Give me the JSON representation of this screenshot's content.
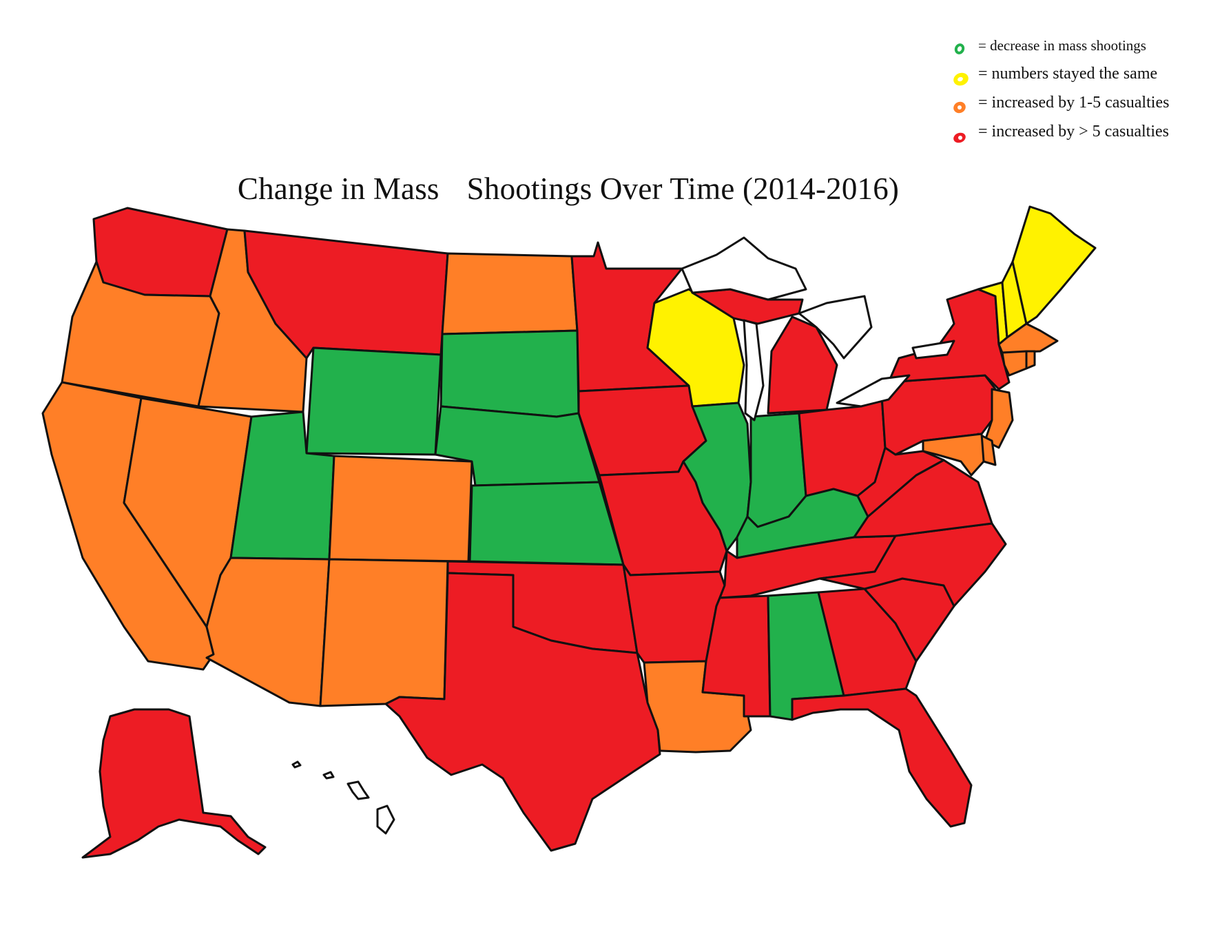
{
  "title_parts": [
    "Change in Mass",
    "Shootings Over Time (2014-2016)"
  ],
  "legend": [
    {
      "key": "decrease",
      "label": "= decrease in mass shootings",
      "color": "#22b14c"
    },
    {
      "key": "same",
      "label": "= numbers stayed the same",
      "color": "#fff200"
    },
    {
      "key": "small_increase",
      "label": "= increased by 1-5 casualties",
      "color": "#ff7f27"
    },
    {
      "key": "large_increase",
      "label": "= increased by > 5 casualties",
      "color": "#ed1c24"
    }
  ],
  "states": {
    "WA": "large_increase",
    "OR": "small_increase",
    "CA": "small_increase",
    "ID": "small_increase",
    "NV": "small_increase",
    "MT": "large_increase",
    "WY": "decrease",
    "UT": "decrease",
    "AZ": "small_increase",
    "CO": "small_increase",
    "NM": "small_increase",
    "ND": "small_increase",
    "SD": "decrease",
    "NE": "decrease",
    "KS": "decrease",
    "OK": "large_increase",
    "TX": "large_increase",
    "MN": "large_increase",
    "IA": "large_increase",
    "MO": "large_increase",
    "AR": "large_increase",
    "LA": "small_increase",
    "WI": "same",
    "IL": "decrease",
    "MI": "large_increase",
    "IN": "decrease",
    "OH": "large_increase",
    "KY": "decrease",
    "TN": "large_increase",
    "MS": "large_increase",
    "AL": "decrease",
    "GA": "large_increase",
    "FL": "large_increase",
    "SC": "large_increase",
    "NC": "large_increase",
    "VA": "large_increase",
    "WV": "large_increase",
    "PA": "large_increase",
    "NY": "large_increase",
    "NJ": "small_increase",
    "DE": "small_increase",
    "MD": "small_increase",
    "CT": "small_increase",
    "RI": "small_increase",
    "MA": "small_increase",
    "VT": "same",
    "NH": "same",
    "ME": "same",
    "AK": "large_increase",
    "HI": "none"
  }
}
